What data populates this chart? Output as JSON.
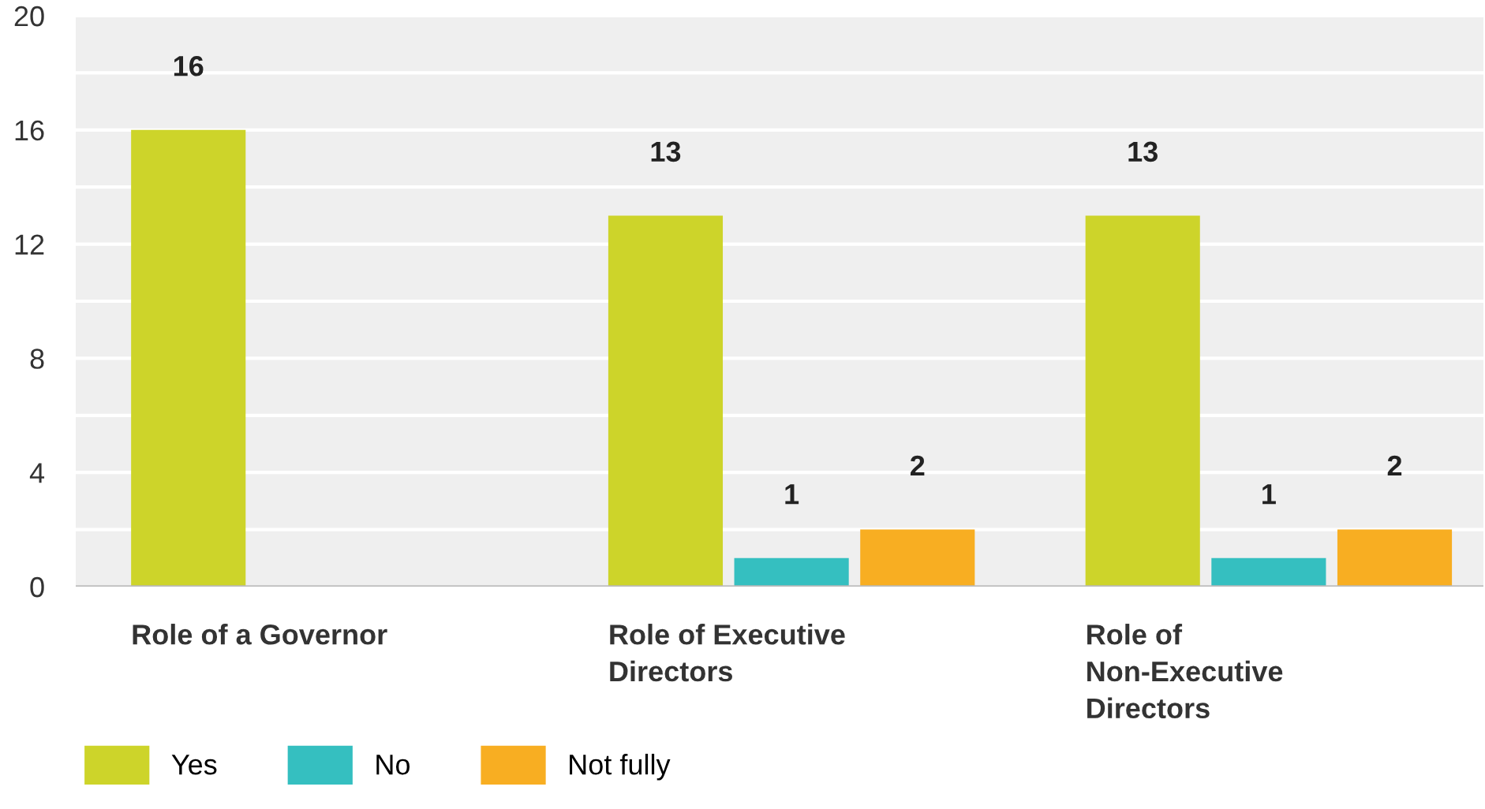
{
  "chart_data": {
    "type": "bar",
    "categories": [
      "Role of a Governor",
      "Role of Executive Directors",
      "Role of Non-Executive Directors"
    ],
    "series": [
      {
        "name": "Yes",
        "color": "#cdd42a",
        "values": [
          16,
          13,
          13
        ]
      },
      {
        "name": "No",
        "color": "#35bfc0",
        "values": [
          null,
          1,
          1
        ]
      },
      {
        "name": "Not fully",
        "color": "#f8ae22",
        "values": [
          null,
          2,
          2
        ]
      }
    ],
    "ylim": [
      0,
      20
    ],
    "yticks": [
      0,
      {
        "value": 2,
        "label": null
      },
      4,
      {
        "value": 6,
        "label": null
      },
      8,
      {
        "value": 10,
        "label": null
      },
      12,
      {
        "value": 14,
        "label": null
      },
      16,
      {
        "value": 18,
        "label": null
      },
      20
    ],
    "grid": "y",
    "legend": "bottom left",
    "data_labels": true
  }
}
